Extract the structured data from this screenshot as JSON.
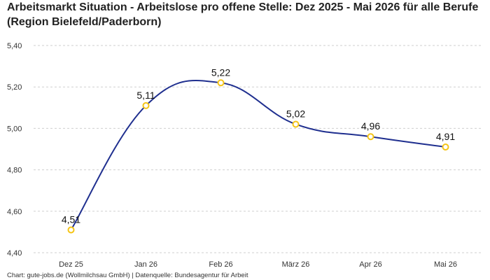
{
  "chart_data": {
    "type": "line",
    "title": "Arbeitsmarkt Situation - Arbeitslose pro offene Stelle: Dez 2025 - Mai 2026 für alle Berufe (Region Bielefeld/Paderborn)",
    "categories": [
      "Dez 25",
      "Jan 26",
      "Feb 26",
      "März 26",
      "Apr 26",
      "Mai 26"
    ],
    "values": [
      4.51,
      5.11,
      5.22,
      5.02,
      4.96,
      4.91
    ],
    "data_labels": [
      "4,51",
      "5,11",
      "5,22",
      "5,02",
      "4,96",
      "4,91"
    ],
    "ylim": [
      4.4,
      5.4
    ],
    "yticks": [
      4.4,
      4.6,
      4.8,
      5.0,
      5.2,
      5.4
    ],
    "ytick_labels": [
      "4,40",
      "4,60",
      "4,80",
      "5,00",
      "5,20",
      "5,40"
    ],
    "grid": true,
    "line_color": "#1f2f8f",
    "marker_color": "#f5c518"
  },
  "footer": "Chart: gute-jobs.de (Wollmilchsau GmbH) | Datenquelle: Bundesagentur für Arbeit"
}
